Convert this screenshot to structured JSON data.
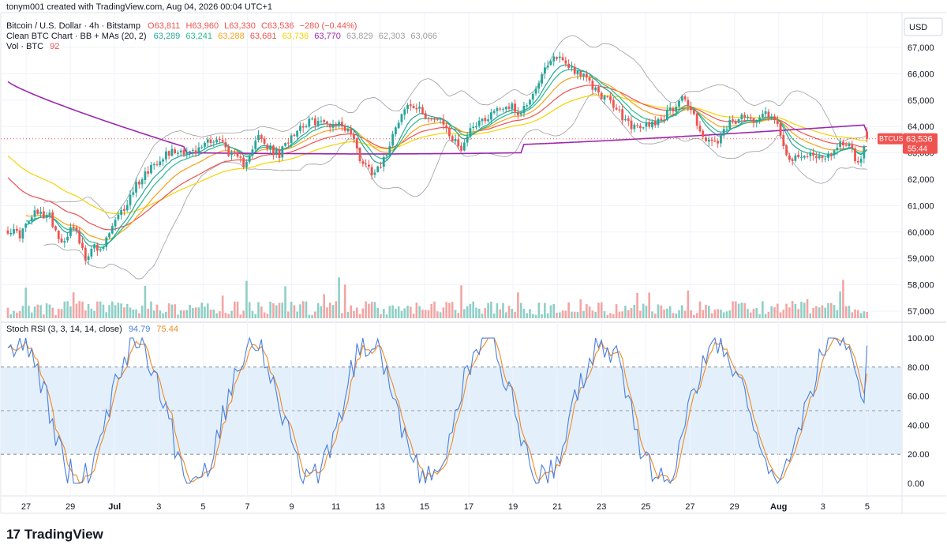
{
  "header": {
    "created_by": "tonym001 created with TradingView.com, Aug 04, 2026 00:04 UTC+1",
    "symbol_line": "Bitcoin / U.S. Dollar · 4h · Bitstamp",
    "ohlc": {
      "o": "O63,811",
      "h": "H63,960",
      "l": "L63,330",
      "c": "C63,536",
      "chg": "−280 (−0.44%)"
    },
    "bb_label": "Clean BTC Chart · BB + MAs (20, 2)",
    "bb_values": [
      "63,289",
      "63,241",
      "63,288",
      "63,681",
      "63,736",
      "63,770",
      "63,829",
      "62,303",
      "63,066"
    ],
    "bb_colors": [
      "#26a69a",
      "#2bbb8a",
      "#f7a21b",
      "#ef5350",
      "#f5d400",
      "#9c27b0",
      "#9e9e9e",
      "#9e9e9e",
      "#9e9e9e"
    ],
    "vol_label": "Vol · BTC",
    "vol_value": "92",
    "rsi_label": "Stoch RSI (3, 3, 14, 14, close)",
    "rsi_k": "94.79",
    "rsi_d": "75.44"
  },
  "currency": "USD",
  "price_tag": {
    "symbol": "BTCUSD",
    "price": "63,536",
    "countdown": "55:44"
  },
  "branding": {
    "logo_mark": "17",
    "logo_text": "TradingView"
  },
  "colors": {
    "up": "#26a69a",
    "down": "#ef5350",
    "vol_up": "#8fcfc6",
    "vol_down": "#f3a5a3",
    "ma_green": "#26a69a",
    "ma_teal": "#2bbb8a",
    "ma_orange": "#f7a21b",
    "ma_red": "#ef5350",
    "ma_yellow": "#f5d400",
    "ma_purple": "#9c27b0",
    "bb": "#9e9e9e",
    "rsi_k": "#4a7fe0",
    "rsi_d": "#f08a24",
    "rsi_band": "#e3f0fc"
  },
  "chart_data": [
    {
      "type": "candlestick",
      "title": "Bitcoin / U.S. Dollar · 4h · Bitstamp",
      "x_tick_labels": [
        "27",
        "29",
        "Jul",
        "3",
        "5",
        "7",
        "9",
        "11",
        "13",
        "15",
        "17",
        "19",
        "21",
        "23",
        "25",
        "27",
        "29",
        "Aug",
        "3",
        "5"
      ],
      "y_tick_labels": [
        "67,000",
        "66,000",
        "65,000",
        "64,000",
        "63,000",
        "62,000",
        "61,000",
        "60,000",
        "59,000",
        "58,000",
        "57,000"
      ],
      "ylim": [
        56700,
        67600
      ],
      "close_path_keypoints": [
        [
          0,
          60100
        ],
        [
          4,
          59900
        ],
        [
          9,
          60700
        ],
        [
          14,
          60600
        ],
        [
          18,
          59600
        ],
        [
          22,
          60300
        ],
        [
          26,
          58900
        ],
        [
          28,
          59500
        ],
        [
          31,
          59200
        ],
        [
          35,
          60200
        ],
        [
          39,
          60900
        ],
        [
          43,
          61800
        ],
        [
          48,
          62500
        ],
        [
          53,
          63000
        ],
        [
          58,
          63100
        ],
        [
          63,
          63000
        ],
        [
          67,
          63500
        ],
        [
          71,
          63500
        ],
        [
          75,
          62900
        ],
        [
          79,
          62600
        ],
        [
          84,
          63600
        ],
        [
          87,
          63200
        ],
        [
          91,
          62900
        ],
        [
          95,
          63700
        ],
        [
          99,
          64100
        ],
        [
          103,
          64200
        ],
        [
          107,
          64100
        ],
        [
          111,
          64100
        ],
        [
          115,
          63800
        ],
        [
          118,
          62800
        ],
        [
          122,
          62300
        ],
        [
          126,
          62700
        ],
        [
          130,
          64100
        ],
        [
          134,
          64800
        ],
        [
          138,
          64600
        ],
        [
          142,
          64300
        ],
        [
          146,
          64100
        ],
        [
          149,
          63500
        ],
        [
          152,
          63200
        ],
        [
          156,
          64100
        ],
        [
          160,
          64300
        ],
        [
          164,
          64700
        ],
        [
          168,
          64800
        ],
        [
          172,
          64500
        ],
        [
          176,
          65300
        ],
        [
          180,
          66100
        ],
        [
          184,
          66700
        ],
        [
          188,
          66300
        ],
        [
          192,
          66000
        ],
        [
          196,
          65500
        ],
        [
          199,
          65200
        ],
        [
          203,
          64800
        ],
        [
          207,
          64200
        ],
        [
          211,
          63900
        ],
        [
          215,
          64100
        ],
        [
          219,
          64300
        ],
        [
          223,
          64700
        ],
        [
          226,
          65200
        ],
        [
          230,
          64400
        ],
        [
          234,
          63400
        ],
        [
          238,
          63400
        ],
        [
          242,
          64100
        ],
        [
          246,
          64300
        ],
        [
          250,
          64300
        ],
        [
          254,
          64600
        ],
        [
          258,
          64100
        ],
        [
          262,
          62700
        ],
        [
          266,
          62800
        ],
        [
          270,
          63000
        ],
        [
          274,
          62700
        ],
        [
          278,
          63300
        ],
        [
          282,
          63400
        ],
        [
          285,
          62500
        ],
        [
          288,
          63500
        ]
      ],
      "moving_averages": [
        {
          "name": "MA 200",
          "color": "#9c27b0"
        },
        {
          "name": "EMA",
          "color": "#f5d400"
        },
        {
          "name": "EMA",
          "color": "#ef5350"
        },
        {
          "name": "EMA",
          "color": "#f7a21b"
        }
      ],
      "bollinger_bands": {
        "length": 20,
        "mult": 2
      },
      "last_price": 63536
    },
    {
      "type": "bar",
      "title": "Vol · BTC",
      "last_value": 92
    },
    {
      "type": "line",
      "title": "Stoch RSI (3, 3, 14, 14, close)",
      "y_tick_labels": [
        "100.00",
        "80.00",
        "60.00",
        "40.00",
        "20.00",
        "0.00"
      ],
      "ylim": [
        -4,
        108
      ],
      "upper_band": 80,
      "middle_band": 50,
      "lower_band": 20,
      "series": [
        {
          "name": "K",
          "last": 94.79
        },
        {
          "name": "D",
          "last": 75.44
        }
      ]
    }
  ]
}
